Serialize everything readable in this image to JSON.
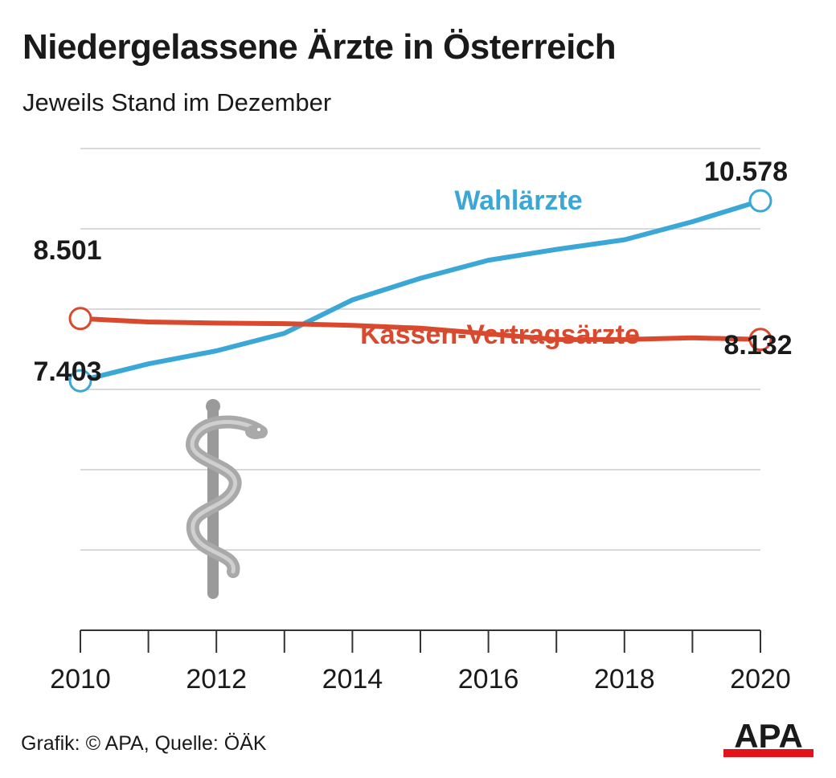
{
  "chart_data": {
    "type": "line",
    "title": "Niedergelassene Ärzte in Österreich",
    "subtitle": "Jeweils Stand im Dezember",
    "x": [
      2010,
      2011,
      2012,
      2013,
      2014,
      2015,
      2016,
      2017,
      2018,
      2019,
      2020
    ],
    "x_tick_labels": [
      "2010",
      "2012",
      "2014",
      "2016",
      "2018",
      "2020"
    ],
    "xlim": [
      2010,
      2020
    ],
    "ylim": [
      3000,
      11500
    ],
    "grid": true,
    "series": [
      {
        "name": "Wahlärzte",
        "color": "#3ba7d6",
        "values": [
          7403,
          7700,
          7930,
          8240,
          8830,
          9210,
          9530,
          9720,
          9890,
          10210,
          10578
        ],
        "start_label": "7.403",
        "end_label": "10.578"
      },
      {
        "name": "Kassen-Vertragsärzte",
        "color": "#d9492e",
        "values": [
          8501,
          8440,
          8420,
          8410,
          8380,
          8330,
          8230,
          8130,
          8130,
          8160,
          8132
        ],
        "start_label": "8.501",
        "end_label": "8.132"
      }
    ]
  },
  "footer": {
    "credit": "Grafik: © APA, Quelle: ÖÄK",
    "logo_text": "APA",
    "logo_icon": "apa-logo-icon"
  },
  "decoration": {
    "icon": "rod-of-asclepius-icon"
  },
  "colors": {
    "grid": "#d9d9d9",
    "axis": "#333333",
    "text": "#1a1a1a",
    "caduceus": "#9a9a9a",
    "logo_red": "#e3121b"
  }
}
